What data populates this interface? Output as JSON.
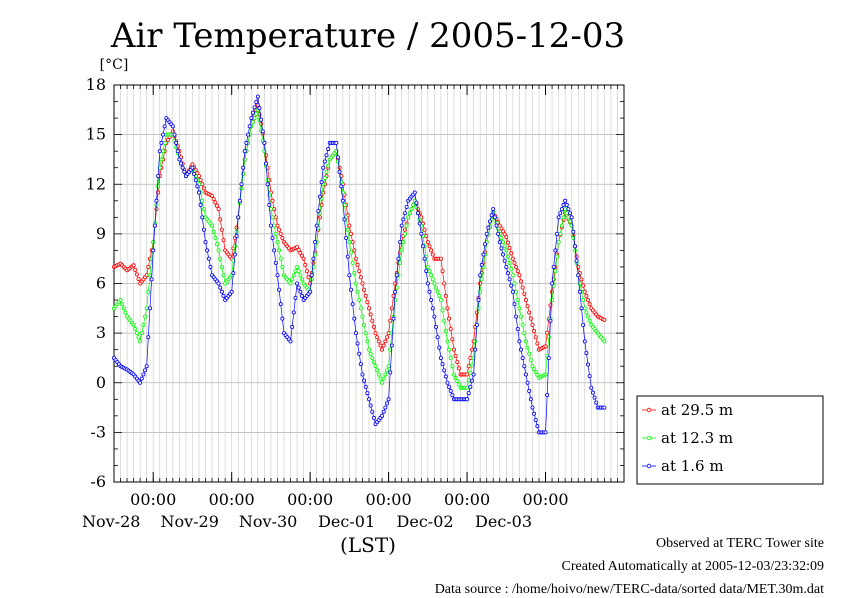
{
  "chart_data": {
    "type": "line",
    "title": "Air Temperature / 2005-12-03",
    "ylabel": "[°C]",
    "xlabel": "(LST)",
    "ylim": [
      -6,
      18
    ],
    "yticks": [
      18,
      15,
      12,
      9,
      6,
      3,
      0,
      -3,
      -6
    ],
    "xlim": [
      "2005-11-27T12:00",
      "2005-12-04T00:00"
    ],
    "date_ticks": [
      {
        "time": "00:00",
        "date": "Nov-28"
      },
      {
        "time": "00:00",
        "date": "Nov-29"
      },
      {
        "time": "00:00",
        "date": "Nov-30"
      },
      {
        "time": "00:00",
        "date": "Dec-01"
      },
      {
        "time": "00:00",
        "date": "Dec-02"
      },
      {
        "time": "00:00",
        "date": "Dec-03"
      }
    ],
    "grid": true,
    "legend_position": "right",
    "series": [
      {
        "name": "at 29.5 m",
        "color": "#ff0000",
        "points": [
          [
            "2005-11-27T12:00",
            7.0
          ],
          [
            "2005-11-27T14:00",
            7.2
          ],
          [
            "2005-11-27T16:00",
            6.8
          ],
          [
            "2005-11-27T18:00",
            7.1
          ],
          [
            "2005-11-27T20:00",
            6.0
          ],
          [
            "2005-11-27T22:00",
            6.5
          ],
          [
            "2005-11-28T00:00",
            8.5
          ],
          [
            "2005-11-28T02:00",
            12.5
          ],
          [
            "2005-11-28T04:00",
            14.5
          ],
          [
            "2005-11-28T06:00",
            15.2
          ],
          [
            "2005-11-28T08:00",
            14.0
          ],
          [
            "2005-11-28T10:00",
            12.5
          ],
          [
            "2005-11-28T12:00",
            13.2
          ],
          [
            "2005-11-28T14:00",
            12.5
          ],
          [
            "2005-11-28T16:00",
            11.5
          ],
          [
            "2005-11-28T18:00",
            11.3
          ],
          [
            "2005-11-28T20:00",
            10.5
          ],
          [
            "2005-11-28T22:00",
            8.0
          ],
          [
            "2005-11-29T00:00",
            7.5
          ],
          [
            "2005-11-29T02:00",
            10.0
          ],
          [
            "2005-11-29T04:00",
            13.5
          ],
          [
            "2005-11-29T06:00",
            15.5
          ],
          [
            "2005-11-29T08:00",
            16.8
          ],
          [
            "2005-11-29T10:00",
            14.5
          ],
          [
            "2005-11-29T12:00",
            11.5
          ],
          [
            "2005-11-29T14:00",
            9.5
          ],
          [
            "2005-11-29T16:00",
            8.5
          ],
          [
            "2005-11-29T18:00",
            8.0
          ],
          [
            "2005-11-29T20:00",
            8.2
          ],
          [
            "2005-11-29T22:00",
            7.5
          ],
          [
            "2005-11-30T00:00",
            6.0
          ],
          [
            "2005-11-30T02:00",
            8.5
          ],
          [
            "2005-11-30T04:00",
            11.5
          ],
          [
            "2005-11-30T06:00",
            13.5
          ],
          [
            "2005-11-30T08:00",
            14.0
          ],
          [
            "2005-11-30T10:00",
            12.0
          ],
          [
            "2005-11-30T12:00",
            9.5
          ],
          [
            "2005-11-30T14:00",
            7.5
          ],
          [
            "2005-11-30T16:00",
            6.0
          ],
          [
            "2005-11-30T18:00",
            4.5
          ],
          [
            "2005-11-30T20:00",
            3.0
          ],
          [
            "2005-11-30T22:00",
            2.0
          ],
          [
            "2005-12-01T00:00",
            3.0
          ],
          [
            "2005-12-01T02:00",
            6.0
          ],
          [
            "2005-12-01T04:00",
            8.5
          ],
          [
            "2005-12-01T06:00",
            10.0
          ],
          [
            "2005-12-01T08:00",
            11.0
          ],
          [
            "2005-12-01T10:00",
            10.0
          ],
          [
            "2005-12-01T12:00",
            8.5
          ],
          [
            "2005-12-01T14:00",
            7.5
          ],
          [
            "2005-12-01T16:00",
            7.5
          ],
          [
            "2005-12-01T18:00",
            4.5
          ],
          [
            "2005-12-01T20:00",
            2.0
          ],
          [
            "2005-12-01T22:00",
            0.5
          ],
          [
            "2005-12-02T00:00",
            0.5
          ],
          [
            "2005-12-02T02:00",
            2.5
          ],
          [
            "2005-12-02T04:00",
            6.0
          ],
          [
            "2005-12-02T06:00",
            8.5
          ],
          [
            "2005-12-02T08:00",
            10.3
          ],
          [
            "2005-12-02T10:00",
            9.5
          ],
          [
            "2005-12-02T12:00",
            8.8
          ],
          [
            "2005-12-02T14:00",
            7.5
          ],
          [
            "2005-12-02T16:00",
            6.5
          ],
          [
            "2005-12-02T18:00",
            5.0
          ],
          [
            "2005-12-02T20:00",
            3.5
          ],
          [
            "2005-12-02T22:00",
            2.0
          ],
          [
            "2005-12-03T00:00",
            2.2
          ],
          [
            "2005-12-03T02:00",
            5.5
          ],
          [
            "2005-12-03T04:00",
            8.5
          ],
          [
            "2005-12-03T06:00",
            10.3
          ],
          [
            "2005-12-03T08:00",
            9.5
          ],
          [
            "2005-12-03T10:00",
            7.0
          ],
          [
            "2005-12-03T12:00",
            5.5
          ],
          [
            "2005-12-03T14:00",
            4.5
          ],
          [
            "2005-12-03T16:00",
            4.0
          ],
          [
            "2005-12-03T18:00",
            3.8
          ]
        ]
      },
      {
        "name": "at 12.3 m",
        "color": "#00ff00",
        "points": [
          [
            "2005-11-27T12:00",
            4.5
          ],
          [
            "2005-11-27T14:00",
            5.0
          ],
          [
            "2005-11-27T16:00",
            4.0
          ],
          [
            "2005-11-27T18:00",
            3.5
          ],
          [
            "2005-11-27T20:00",
            2.5
          ],
          [
            "2005-11-27T22:00",
            4.5
          ],
          [
            "2005-11-28T00:00",
            8.5
          ],
          [
            "2005-11-28T02:00",
            13.0
          ],
          [
            "2005-11-28T04:00",
            15.0
          ],
          [
            "2005-11-28T06:00",
            15.0
          ],
          [
            "2005-11-28T08:00",
            13.5
          ],
          [
            "2005-11-28T10:00",
            12.5
          ],
          [
            "2005-11-28T12:00",
            13.0
          ],
          [
            "2005-11-28T14:00",
            12.0
          ],
          [
            "2005-11-28T16:00",
            10.0
          ],
          [
            "2005-11-28T18:00",
            9.5
          ],
          [
            "2005-11-28T20:00",
            8.0
          ],
          [
            "2005-11-28T22:00",
            6.0
          ],
          [
            "2005-11-29T00:00",
            6.5
          ],
          [
            "2005-11-29T02:00",
            10.0
          ],
          [
            "2005-11-29T04:00",
            13.5
          ],
          [
            "2005-11-29T06:00",
            15.5
          ],
          [
            "2005-11-29T08:00",
            16.5
          ],
          [
            "2005-11-29T10:00",
            14.0
          ],
          [
            "2005-11-29T12:00",
            10.5
          ],
          [
            "2005-11-29T14:00",
            8.5
          ],
          [
            "2005-11-29T16:00",
            6.5
          ],
          [
            "2005-11-29T18:00",
            6.0
          ],
          [
            "2005-11-29T20:00",
            7.0
          ],
          [
            "2005-11-29T22:00",
            6.0
          ],
          [
            "2005-11-30T00:00",
            5.5
          ],
          [
            "2005-11-30T02:00",
            8.5
          ],
          [
            "2005-11-30T04:00",
            12.0
          ],
          [
            "2005-11-30T06:00",
            13.5
          ],
          [
            "2005-11-30T08:00",
            14.0
          ],
          [
            "2005-11-30T10:00",
            11.5
          ],
          [
            "2005-11-30T12:00",
            8.5
          ],
          [
            "2005-11-30T14:00",
            6.0
          ],
          [
            "2005-11-30T16:00",
            4.0
          ],
          [
            "2005-11-30T18:00",
            2.0
          ],
          [
            "2005-11-30T20:00",
            1.0
          ],
          [
            "2005-11-30T22:00",
            0.0
          ],
          [
            "2005-12-01T00:00",
            1.0
          ],
          [
            "2005-12-01T02:00",
            5.0
          ],
          [
            "2005-12-01T04:00",
            8.0
          ],
          [
            "2005-12-01T06:00",
            10.0
          ],
          [
            "2005-12-01T08:00",
            11.0
          ],
          [
            "2005-12-01T10:00",
            9.5
          ],
          [
            "2005-12-01T12:00",
            7.0
          ],
          [
            "2005-12-01T14:00",
            6.0
          ],
          [
            "2005-12-01T16:00",
            5.0
          ],
          [
            "2005-12-01T18:00",
            2.5
          ],
          [
            "2005-12-01T20:00",
            0.5
          ],
          [
            "2005-12-01T22:00",
            -0.3
          ],
          [
            "2005-12-02T00:00",
            -0.3
          ],
          [
            "2005-12-02T02:00",
            1.5
          ],
          [
            "2005-12-02T04:00",
            5.5
          ],
          [
            "2005-12-02T06:00",
            8.5
          ],
          [
            "2005-12-02T08:00",
            10.3
          ],
          [
            "2005-12-02T10:00",
            9.0
          ],
          [
            "2005-12-02T12:00",
            8.0
          ],
          [
            "2005-12-02T14:00",
            6.5
          ],
          [
            "2005-12-02T16:00",
            4.5
          ],
          [
            "2005-12-02T18:00",
            2.5
          ],
          [
            "2005-12-02T20:00",
            1.0
          ],
          [
            "2005-12-02T22:00",
            0.3
          ],
          [
            "2005-12-03T00:00",
            0.5
          ],
          [
            "2005-12-03T02:00",
            5.0
          ],
          [
            "2005-12-03T04:00",
            8.5
          ],
          [
            "2005-12-03T06:00",
            10.5
          ],
          [
            "2005-12-03T08:00",
            9.5
          ],
          [
            "2005-12-03T10:00",
            6.5
          ],
          [
            "2005-12-03T12:00",
            4.5
          ],
          [
            "2005-12-03T14:00",
            3.5
          ],
          [
            "2005-12-03T16:00",
            3.0
          ],
          [
            "2005-12-03T18:00",
            2.5
          ]
        ]
      },
      {
        "name": "at 1.6 m",
        "color": "#0000ff",
        "points": [
          [
            "2005-11-27T12:00",
            1.5
          ],
          [
            "2005-11-27T14:00",
            1.0
          ],
          [
            "2005-11-27T16:00",
            0.8
          ],
          [
            "2005-11-27T18:00",
            0.5
          ],
          [
            "2005-11-27T20:00",
            0.0
          ],
          [
            "2005-11-27T22:00",
            1.0
          ],
          [
            "2005-11-28T00:00",
            8.0
          ],
          [
            "2005-11-28T02:00",
            14.0
          ],
          [
            "2005-11-28T04:00",
            16.0
          ],
          [
            "2005-11-28T06:00",
            15.5
          ],
          [
            "2005-11-28T08:00",
            13.5
          ],
          [
            "2005-11-28T10:00",
            12.5
          ],
          [
            "2005-11-28T12:00",
            13.0
          ],
          [
            "2005-11-28T14:00",
            11.5
          ],
          [
            "2005-11-28T16:00",
            8.5
          ],
          [
            "2005-11-28T18:00",
            6.5
          ],
          [
            "2005-11-28T20:00",
            6.0
          ],
          [
            "2005-11-28T22:00",
            5.0
          ],
          [
            "2005-11-29T00:00",
            5.5
          ],
          [
            "2005-11-29T02:00",
            10.0
          ],
          [
            "2005-11-29T04:00",
            14.0
          ],
          [
            "2005-11-29T06:00",
            16.0
          ],
          [
            "2005-11-29T08:00",
            17.3
          ],
          [
            "2005-11-29T10:00",
            14.5
          ],
          [
            "2005-11-29T12:00",
            9.5
          ],
          [
            "2005-11-29T14:00",
            6.5
          ],
          [
            "2005-11-29T16:00",
            3.0
          ],
          [
            "2005-11-29T18:00",
            2.5
          ],
          [
            "2005-11-29T20:00",
            6.0
          ],
          [
            "2005-11-29T22:00",
            5.0
          ],
          [
            "2005-11-30T00:00",
            5.5
          ],
          [
            "2005-11-30T02:00",
            9.5
          ],
          [
            "2005-11-30T04:00",
            13.0
          ],
          [
            "2005-11-30T06:00",
            14.5
          ],
          [
            "2005-11-30T08:00",
            14.5
          ],
          [
            "2005-11-30T10:00",
            11.0
          ],
          [
            "2005-11-30T12:00",
            6.5
          ],
          [
            "2005-11-30T14:00",
            3.0
          ],
          [
            "2005-11-30T16:00",
            0.5
          ],
          [
            "2005-11-30T18:00",
            -1.0
          ],
          [
            "2005-11-30T20:00",
            -2.5
          ],
          [
            "2005-11-30T22:00",
            -2.0
          ],
          [
            "2005-12-01T00:00",
            -1.0
          ],
          [
            "2005-12-01T02:00",
            5.5
          ],
          [
            "2005-12-01T04:00",
            9.5
          ],
          [
            "2005-12-01T06:00",
            11.0
          ],
          [
            "2005-12-01T08:00",
            11.5
          ],
          [
            "2005-12-01T10:00",
            9.0
          ],
          [
            "2005-12-01T12:00",
            6.0
          ],
          [
            "2005-12-01T14:00",
            4.0
          ],
          [
            "2005-12-01T16:00",
            1.5
          ],
          [
            "2005-12-01T18:00",
            0.0
          ],
          [
            "2005-12-01T20:00",
            -1.0
          ],
          [
            "2005-12-01T22:00",
            -1.0
          ],
          [
            "2005-12-02T00:00",
            -1.0
          ],
          [
            "2005-12-02T02:00",
            0.5
          ],
          [
            "2005-12-02T04:00",
            6.5
          ],
          [
            "2005-12-02T06:00",
            9.0
          ],
          [
            "2005-12-02T08:00",
            10.5
          ],
          [
            "2005-12-02T10:00",
            8.5
          ],
          [
            "2005-12-02T12:00",
            7.0
          ],
          [
            "2005-12-02T14:00",
            5.5
          ],
          [
            "2005-12-02T16:00",
            2.5
          ],
          [
            "2005-12-02T18:00",
            0.5
          ],
          [
            "2005-12-02T20:00",
            -1.5
          ],
          [
            "2005-12-02T22:00",
            -3.0
          ],
          [
            "2005-12-03T00:00",
            -3.0
          ],
          [
            "2005-12-03T02:00",
            6.0
          ],
          [
            "2005-12-03T04:00",
            10.0
          ],
          [
            "2005-12-03T06:00",
            11.0
          ],
          [
            "2005-12-03T08:00",
            10.0
          ],
          [
            "2005-12-03T10:00",
            6.5
          ],
          [
            "2005-12-03T12:00",
            2.5
          ],
          [
            "2005-12-03T14:00",
            -0.3
          ],
          [
            "2005-12-03T16:00",
            -1.5
          ],
          [
            "2005-12-03T18:00",
            -1.5
          ]
        ]
      }
    ]
  },
  "footer": {
    "line1": "Observed at TERC Tower site",
    "line2": "Created Automatically at 2005-12-03/23:32:09",
    "line3": "Data source : /home/hoivo/new/TERC-data/sorted  data/MET.30m.dat"
  }
}
